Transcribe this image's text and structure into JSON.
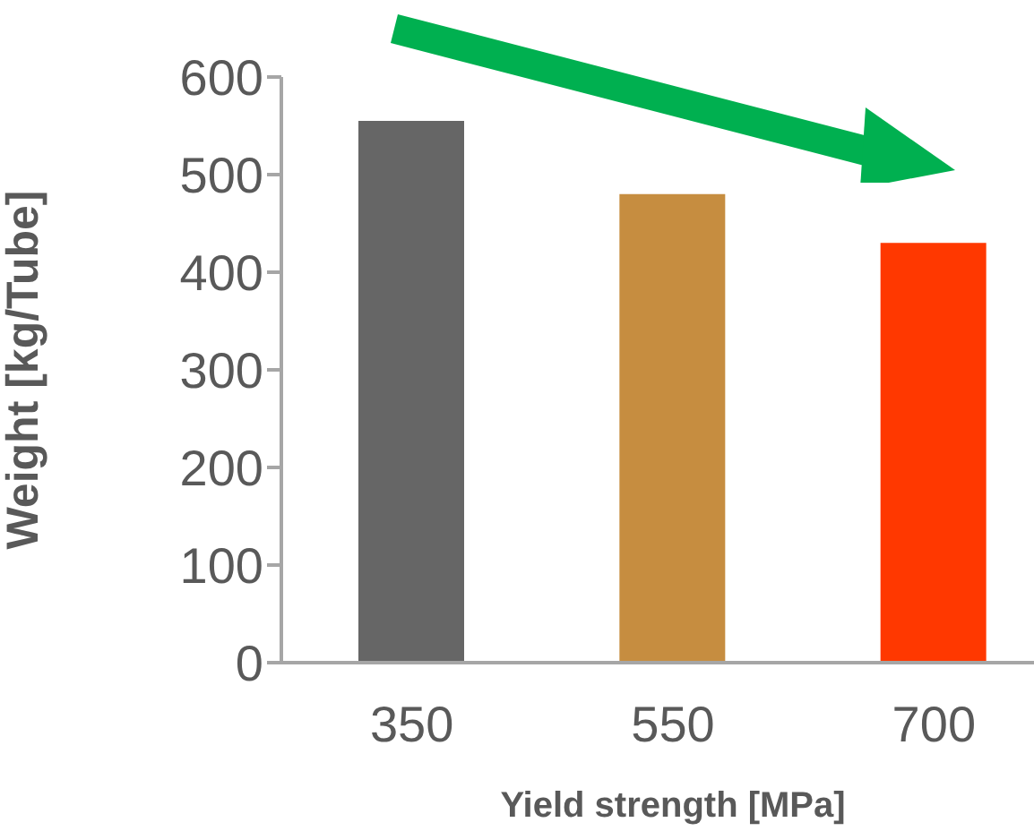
{
  "chart_data": {
    "type": "bar",
    "xlabel": "Yield strength [MPa]",
    "ylabel": "Weight [kg/Tube]",
    "categories": [
      "350",
      "550",
      "700"
    ],
    "values": [
      555,
      480,
      430
    ],
    "colors": [
      "#666666",
      "#c68d40",
      "#ff3800"
    ],
    "ylim": [
      0,
      600
    ],
    "yticks": [
      0,
      100,
      200,
      300,
      400,
      500,
      600
    ],
    "grid": false,
    "legend": false
  }
}
